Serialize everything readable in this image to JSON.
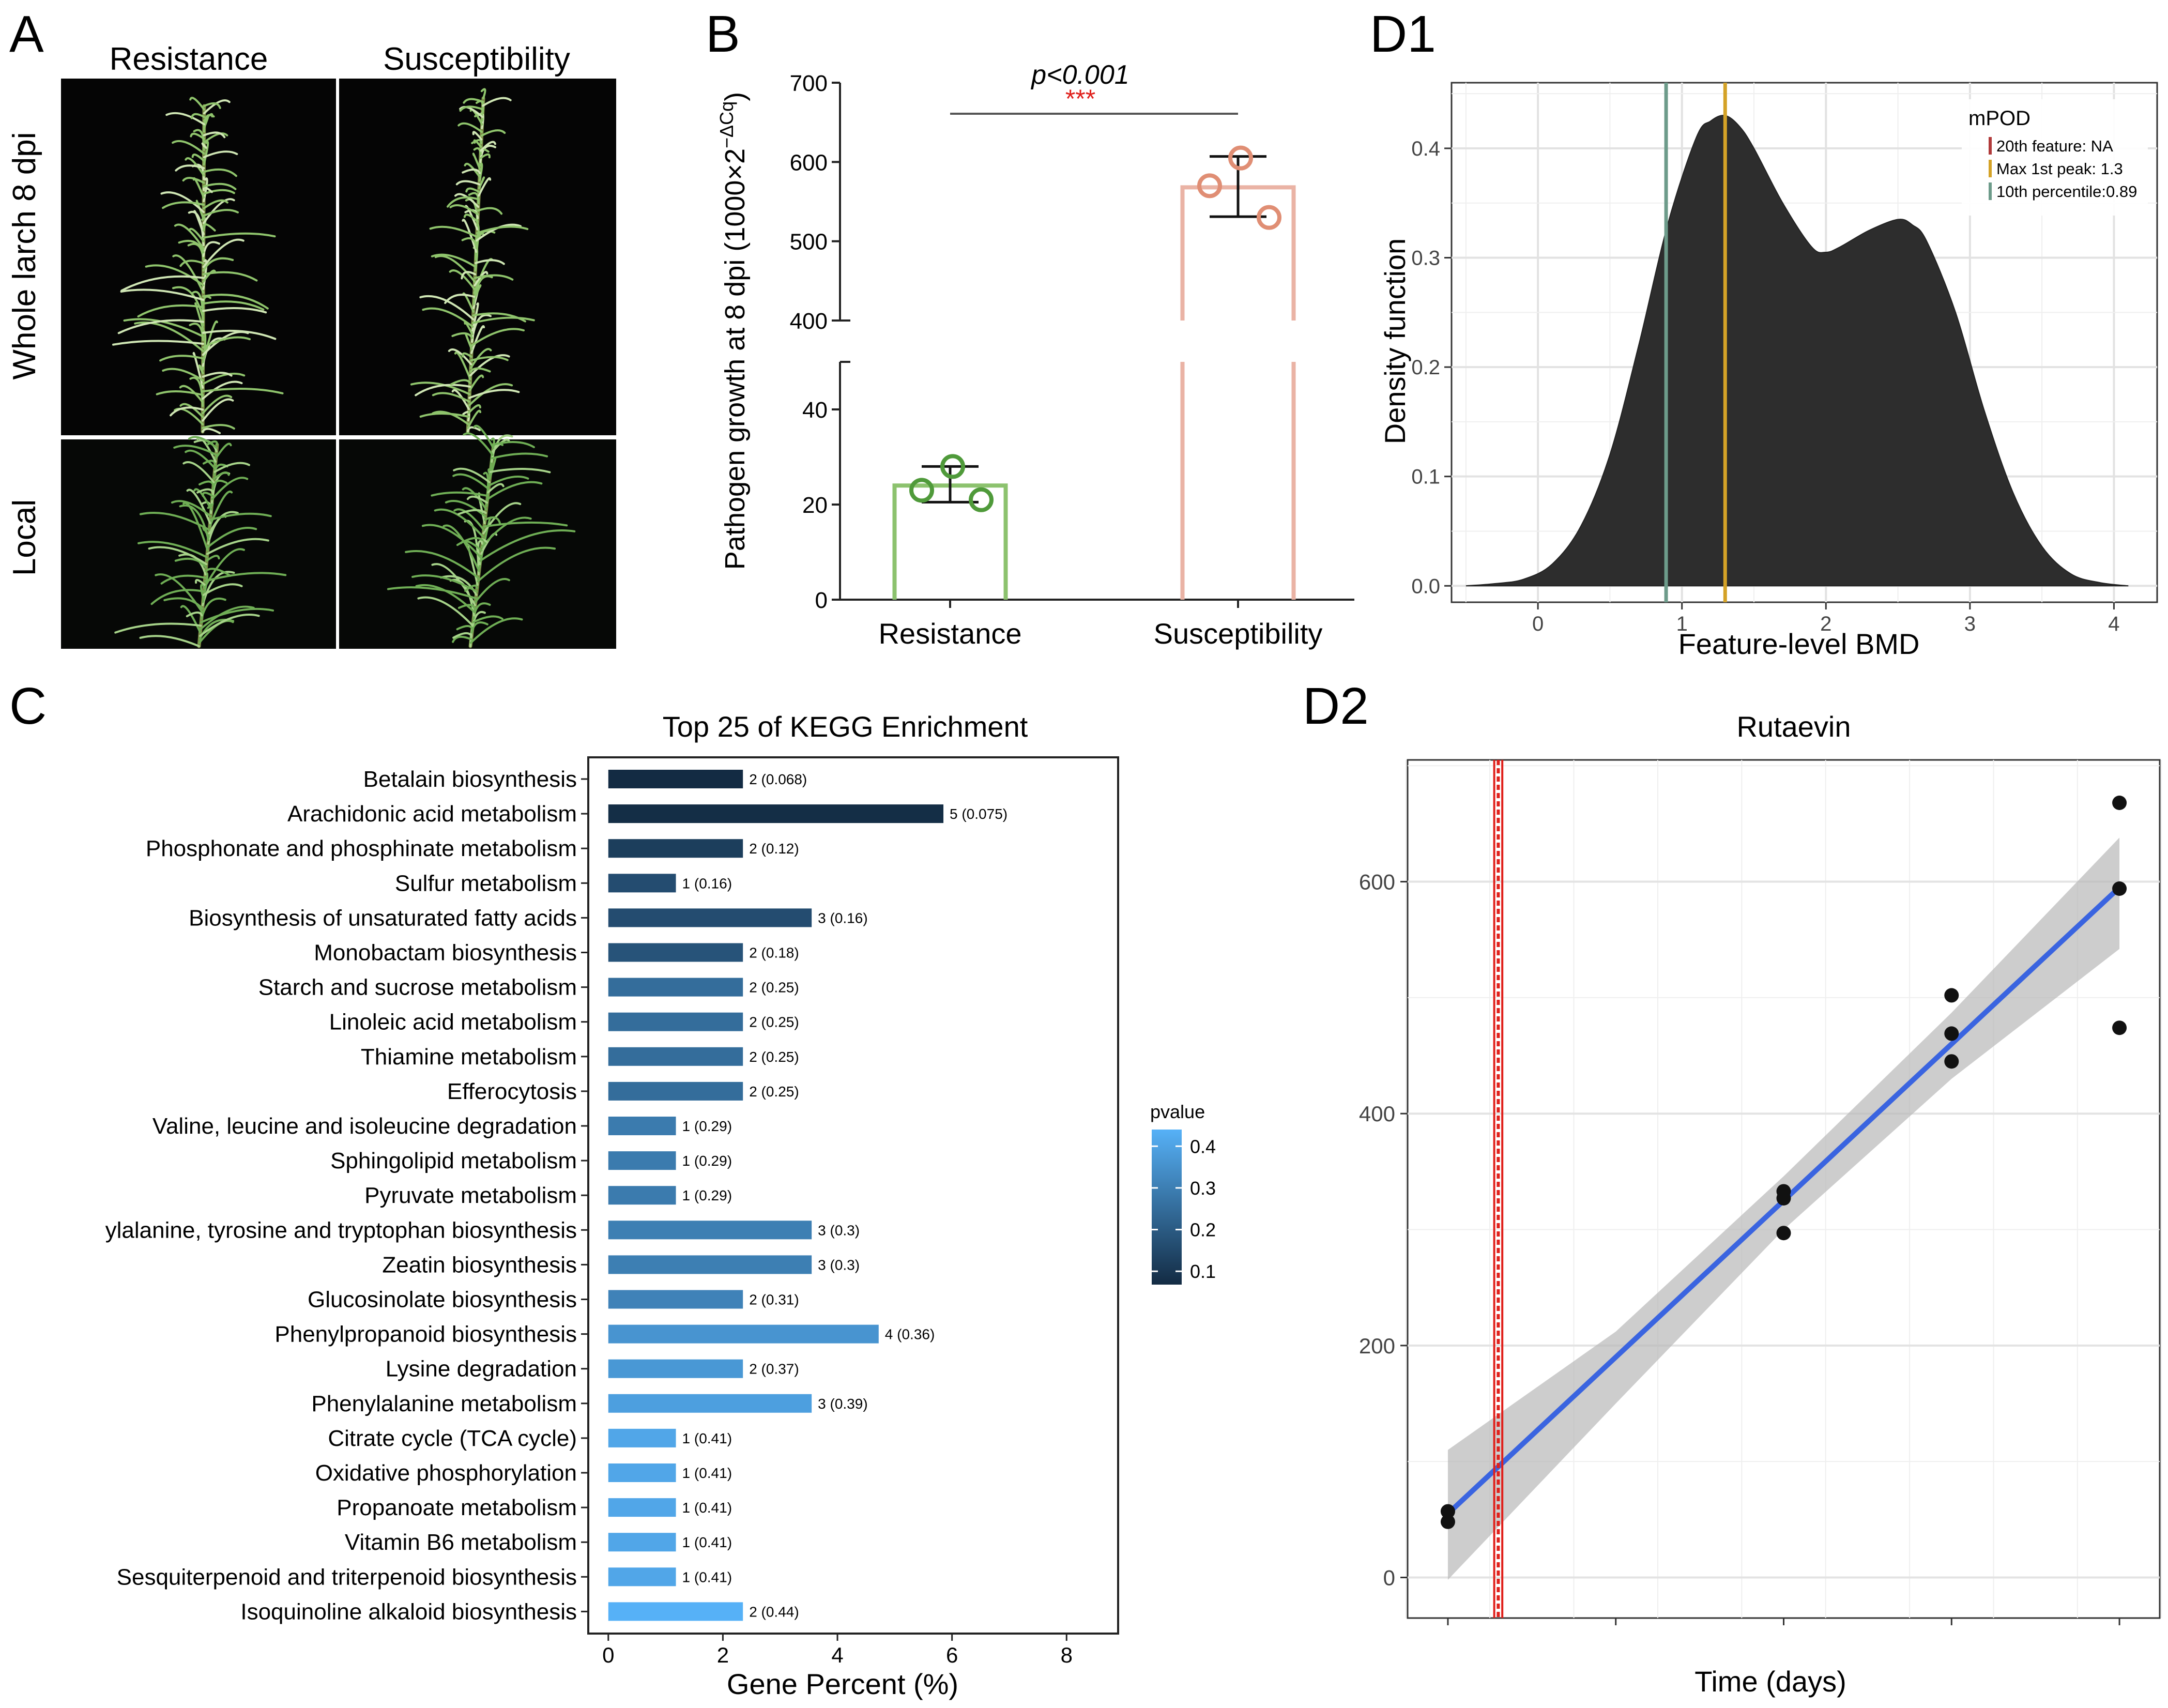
{
  "panel_labels": {
    "A": "A",
    "B": "B",
    "C": "C",
    "D1": "D1",
    "D2": "D2"
  },
  "panel_a": {
    "col_resistance": "Resistance",
    "col_susceptibility": "Susceptibility",
    "row_whole": "Whole larch 8 dpi",
    "row_local": "Local"
  },
  "chart_data": [
    {
      "id": "B",
      "type": "bar",
      "categories": [
        "Resistance",
        "Susceptibility"
      ],
      "values": [
        24,
        568
      ],
      "error": [
        [
          20.5,
          28
        ],
        [
          531,
          607
        ]
      ],
      "points": [
        [
          23,
          28,
          21
        ],
        [
          570,
          605,
          530
        ]
      ],
      "bar_colors": [
        "#8cc26e",
        "#eab3a5"
      ],
      "point_colors": [
        "#4f9a3a",
        "#e08e74"
      ],
      "ylabel_main": "Pathogen growth at 8 dpi (1000×2",
      "ylabel_sup": "−ΔCq",
      "ylabel_end": ")",
      "axis_break": {
        "lower": [
          0,
          50
        ],
        "upper": [
          400,
          700
        ]
      },
      "y_ticks_lower": [
        0,
        20,
        40
      ],
      "y_ticks_upper": [
        400,
        500,
        600,
        700
      ],
      "annotation_p": "p<0.001",
      "annotation_stars": "***"
    },
    {
      "id": "D1",
      "type": "area",
      "title": "",
      "xlabel": "Feature-level BMD",
      "ylabel": "Density function",
      "xlim": [
        -0.6,
        4.3
      ],
      "ylim": [
        -0.015,
        0.46
      ],
      "x_ticks": [
        0,
        1,
        2,
        3,
        4
      ],
      "y_ticks": [
        0.0,
        0.1,
        0.2,
        0.3,
        0.4
      ],
      "x": [
        -0.5,
        -0.3,
        -0.1,
        0.1,
        0.3,
        0.5,
        0.7,
        0.9,
        1.1,
        1.2,
        1.3,
        1.4,
        1.5,
        1.7,
        1.9,
        2.0,
        2.1,
        2.3,
        2.5,
        2.6,
        2.7,
        2.9,
        3.1,
        3.3,
        3.5,
        3.7,
        3.9,
        4.1
      ],
      "y": [
        0.0,
        0.002,
        0.006,
        0.02,
        0.055,
        0.12,
        0.22,
        0.33,
        0.41,
        0.425,
        0.43,
        0.42,
        0.4,
        0.35,
        0.31,
        0.305,
        0.31,
        0.325,
        0.335,
        0.33,
        0.315,
        0.25,
        0.16,
        0.085,
        0.036,
        0.011,
        0.003,
        0.0
      ],
      "vlines": [
        {
          "label": "20th feature: NA",
          "x": null,
          "color": "#b03a3a"
        },
        {
          "label": "Max 1st peak: 1.3",
          "x": 1.3,
          "color": "#d4a227"
        },
        {
          "label": "10th percentile:0.89",
          "x": 0.89,
          "color": "#6d9b8a"
        }
      ],
      "legend_title": "mPOD",
      "legend_position": "top-right"
    },
    {
      "id": "C",
      "type": "bar",
      "orientation": "horizontal",
      "title": "Top 25 of KEGG Enrichment",
      "xlabel": "Gene Percent (%)",
      "xlim": [
        -0.35,
        8.9
      ],
      "x_ticks": [
        0,
        2,
        4,
        6,
        8
      ],
      "categories": [
        "Betalain biosynthesis",
        "Arachidonic acid metabolism",
        "Phosphonate and phosphinate metabolism",
        "Sulfur metabolism",
        "Biosynthesis of unsaturated fatty acids",
        "Monobactam biosynthesis",
        "Starch and sucrose metabolism",
        "Linoleic acid metabolism",
        "Thiamine metabolism",
        "Efferocytosis",
        "Valine, leucine and isoleucine degradation",
        "Sphingolipid metabolism",
        "Pyruvate metabolism",
        "ylalanine, tyrosine and tryptophan biosynthesis",
        "Zeatin biosynthesis",
        "Glucosinolate biosynthesis",
        "Phenylpropanoid biosynthesis",
        "Lysine degradation",
        "Phenylalanine metabolism",
        "Citrate cycle (TCA cycle)",
        "Oxidative phosphorylation",
        "Propanoate metabolism",
        "Vitamin B6 metabolism",
        "Sesquiterpenoid and triterpenoid biosynthesis",
        "Isoquinoline alkaloid biosynthesis"
      ],
      "values": [
        2.35,
        5.85,
        2.35,
        1.18,
        3.55,
        2.35,
        2.35,
        2.35,
        2.35,
        2.35,
        1.18,
        1.18,
        1.18,
        3.55,
        3.55,
        2.35,
        4.72,
        2.35,
        3.55,
        1.18,
        1.18,
        1.18,
        1.18,
        1.18,
        2.35
      ],
      "counts": [
        2,
        5,
        2,
        1,
        3,
        2,
        2,
        2,
        2,
        2,
        1,
        1,
        1,
        3,
        3,
        2,
        4,
        2,
        3,
        1,
        1,
        1,
        1,
        1,
        2
      ],
      "pvalues": [
        0.068,
        0.075,
        0.12,
        0.16,
        0.16,
        0.18,
        0.25,
        0.25,
        0.25,
        0.25,
        0.29,
        0.29,
        0.29,
        0.3,
        0.3,
        0.31,
        0.36,
        0.37,
        0.39,
        0.41,
        0.41,
        0.41,
        0.41,
        0.41,
        0.44
      ],
      "bar_labels": [
        "2 (0.068)",
        "5 (0.075)",
        "2 (0.12)",
        "1 (0.16)",
        "3 (0.16)",
        "2 (0.18)",
        "2 (0.25)",
        "2 (0.25)",
        "2 (0.25)",
        "2 (0.25)",
        "1 (0.29)",
        "1 (0.29)",
        "1 (0.29)",
        "3 (0.3)",
        "3 (0.3)",
        "2 (0.31)",
        "4 (0.36)",
        "2 (0.37)",
        "3 (0.39)",
        "1 (0.41)",
        "1 (0.41)",
        "1 (0.41)",
        "1 (0.41)",
        "1 (0.41)",
        "2 (0.44)"
      ],
      "colorbar": {
        "title": "pvalue",
        "range": [
          0.068,
          0.44
        ],
        "ticks": [
          0.1,
          0.2,
          0.3,
          0.4
        ],
        "low_color": "#132b43",
        "high_color": "#56b1f7"
      }
    },
    {
      "id": "D2",
      "type": "scatter",
      "title": "Rutaevin",
      "xlabel": "Time (days)",
      "ylabel": "",
      "xlim": [
        -0.12,
        2.12
      ],
      "ylim": [
        -35,
        705
      ],
      "x_ticks": [
        0,
        0.5,
        1,
        1.5,
        2
      ],
      "x_ticklabels_visible": false,
      "y_ticks": [
        0,
        200,
        400,
        600
      ],
      "points": [
        [
          0,
          57
        ],
        [
          0,
          48
        ],
        [
          1,
          333
        ],
        [
          1,
          327
        ],
        [
          1,
          297
        ],
        [
          1.5,
          502
        ],
        [
          1.5,
          469
        ],
        [
          1.5,
          445
        ],
        [
          2,
          668
        ],
        [
          2,
          594
        ],
        [
          2,
          474
        ]
      ],
      "fit_line": {
        "from": [
          0,
          55
        ],
        "to": [
          2,
          595
        ],
        "color": "#3a64e0"
      },
      "ci_band": {
        "x": [
          0,
          0.5,
          1,
          1.5,
          2
        ],
        "lower": [
          -2,
          150,
          300,
          430,
          542
        ],
        "upper": [
          110,
          212,
          346,
          487,
          638
        ]
      },
      "vline": {
        "x": 0.15,
        "color": "#e0201b"
      }
    }
  ]
}
